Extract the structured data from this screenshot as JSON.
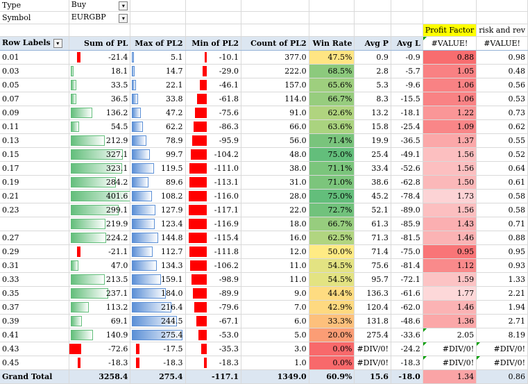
{
  "filters": [
    {
      "label": "Type",
      "value": "Buy"
    },
    {
      "label": "Symbol",
      "value": "EURGBP"
    }
  ],
  "extra_headers": {
    "profit_factor": "Profit Factor",
    "risk_reward": "risk and rev"
  },
  "headers": [
    "Row Labels",
    "Sum of PL",
    "Max of PL2",
    "Min of PL2",
    "Count of PL2",
    "Win Rate",
    "Avg P",
    "Avg L",
    "#VALUE!",
    "#VALUE!"
  ],
  "rows": [
    [
      "0.01",
      "-21.4",
      "5.1",
      "-10.1",
      "377.0",
      "47.5%",
      "0.9",
      "-0.9",
      "0.88",
      "0.98"
    ],
    [
      "0.03",
      "18.1",
      "14.7",
      "-29.0",
      "222.0",
      "68.5%",
      "2.8",
      "-5.7",
      "1.05",
      "0.48"
    ],
    [
      "0.05",
      "33.5",
      "22.1",
      "-46.1",
      "157.0",
      "65.6%",
      "5.3",
      "-9.6",
      "1.06",
      "0.56"
    ],
    [
      "0.07",
      "36.5",
      "33.8",
      "-61.8",
      "114.0",
      "66.7%",
      "8.3",
      "-15.5",
      "1.06",
      "0.53"
    ],
    [
      "0.09",
      "136.2",
      "47.2",
      "-75.6",
      "91.0",
      "62.6%",
      "13.2",
      "-18.1",
      "1.22",
      "0.73"
    ],
    [
      "0.11",
      "54.5",
      "62.2",
      "-86.3",
      "66.0",
      "63.6%",
      "15.8",
      "-25.4",
      "1.09",
      "0.62"
    ],
    [
      "0.13",
      "212.9",
      "78.9",
      "-95.9",
      "56.0",
      "71.4%",
      "19.9",
      "-36.5",
      "1.37",
      "0.55"
    ],
    [
      "0.15",
      "327.1",
      "99.7",
      "-104.2",
      "48.0",
      "75.0%",
      "25.4",
      "-49.1",
      "1.56",
      "0.52"
    ],
    [
      "0.17",
      "323.1",
      "119.5",
      "-111.0",
      "38.0",
      "71.1%",
      "33.4",
      "-52.6",
      "1.56",
      "0.64"
    ],
    [
      "0.19",
      "284.2",
      "89.6",
      "-113.1",
      "31.0",
      "71.0%",
      "38.6",
      "-62.8",
      "1.50",
      "0.61"
    ],
    [
      "0.21",
      "401.6",
      "108.2",
      "-116.0",
      "28.0",
      "75.0%",
      "45.2",
      "-78.4",
      "1.73",
      "0.58"
    ],
    [
      "0.23",
      "299.1",
      "127.9",
      "-117.1",
      "22.0",
      "72.7%",
      "52.1",
      "-89.0",
      "1.56",
      "0.58"
    ],
    [
      "",
      "219.9",
      "123.4",
      "-116.9",
      "18.0",
      "66.7%",
      "61.3",
      "-85.9",
      "1.43",
      "0.71"
    ],
    [
      "0.27",
      "224.2",
      "144.8",
      "-115.4",
      "16.0",
      "62.5%",
      "71.3",
      "-81.5",
      "1.46",
      "0.88"
    ],
    [
      "0.29",
      "-21.1",
      "112.7",
      "-111.8",
      "12.0",
      "50.0%",
      "71.4",
      "-75.0",
      "0.95",
      "0.95"
    ],
    [
      "0.31",
      "47.0",
      "134.3",
      "-106.2",
      "11.0",
      "54.5%",
      "75.6",
      "-81.4",
      "1.12",
      "0.93"
    ],
    [
      "0.33",
      "213.5",
      "159.1",
      "-98.9",
      "11.0",
      "54.5%",
      "95.7",
      "-72.1",
      "1.59",
      "1.33"
    ],
    [
      "0.35",
      "237.1",
      "184.0",
      "-89.9",
      "9.0",
      "44.4%",
      "136.3",
      "-61.6",
      "1.77",
      "2.21"
    ],
    [
      "0.37",
      "113.2",
      "216.4",
      "-79.6",
      "7.0",
      "42.9%",
      "120.4",
      "-62.0",
      "1.46",
      "1.94"
    ],
    [
      "0.39",
      "69.1",
      "244.5",
      "-67.1",
      "6.0",
      "33.3%",
      "131.8",
      "-48.6",
      "1.36",
      "2.71"
    ],
    [
      "0.41",
      "140.9",
      "275.4",
      "-53.0",
      "5.0",
      "20.0%",
      "275.4",
      "-33.6",
      "2.05",
      "8.19"
    ],
    [
      "0.43",
      "-72.6",
      "-17.5",
      "-35.3",
      "3.0",
      "0.0%",
      "#DIV/0!",
      "-24.2",
      "#DIV/0!",
      "#DIV/0!"
    ],
    [
      "0.45",
      "-18.3",
      "-18.3",
      "-18.3",
      "1.0",
      "0.0%",
      "#DIV/0!",
      "-18.3",
      "#DIV/0!",
      "#DIV/0!"
    ]
  ],
  "total": [
    "Grand Total",
    "3258.4",
    "275.4",
    "-117.1",
    "1349.0",
    "60.9%",
    "15.6",
    "-18.0",
    "1.34",
    "0.86"
  ],
  "colors": {
    "header_fill": "#dce6f1",
    "highlight_yellow": "#ffff00",
    "green_bar": "#63be7b",
    "blue_bar": "#5b8fd6",
    "red_bar": "#ff0000",
    "winrate_low": "#f8696b",
    "winrate_mid": "#ffeb84",
    "winrate_high": "#63be7b",
    "pf_low": "#ffffff",
    "pf_high": "#f8696b"
  }
}
